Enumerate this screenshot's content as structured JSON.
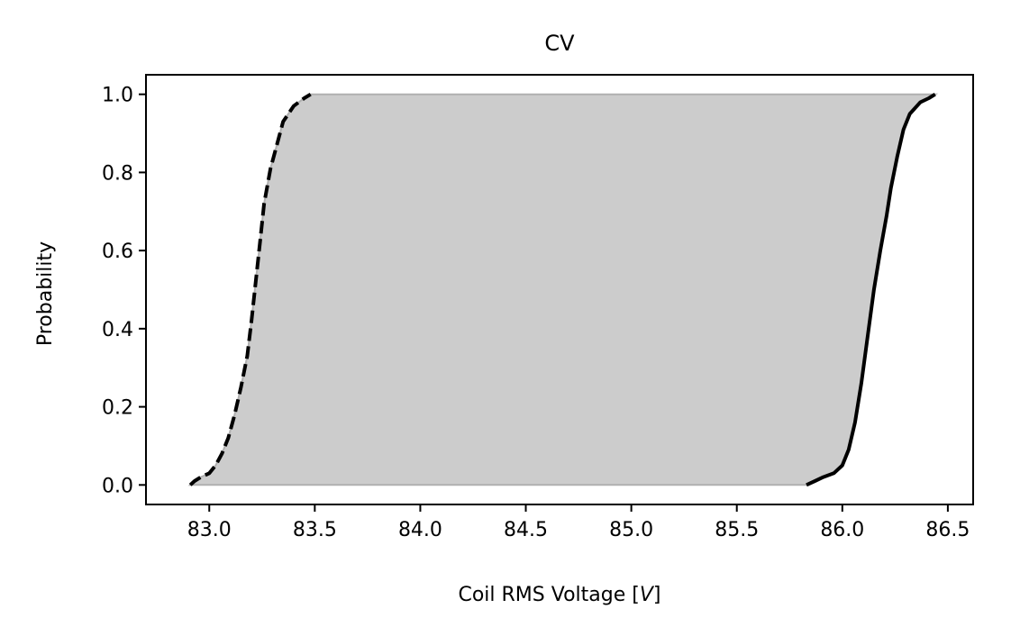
{
  "chart_data": {
    "type": "line",
    "title": "CV",
    "xlabel": "Coil RMS Voltage [V]",
    "xlabel_prefix": "Coil RMS Voltage [",
    "xlabel_unit": "V",
    "xlabel_suffix": "]",
    "ylabel": "Probability",
    "xlim": [
      82.7,
      86.62
    ],
    "ylim": [
      -0.05,
      1.05
    ],
    "x_ticks": [
      "83.0",
      "83.5",
      "84.0",
      "84.5",
      "85.0",
      "85.5",
      "86.0",
      "86.5"
    ],
    "y_ticks": [
      "0.0",
      "0.2",
      "0.4",
      "0.6",
      "0.8",
      "1.0"
    ],
    "grid": false,
    "fill_color": "#cccccc",
    "line_color": "#000000",
    "series": [
      {
        "style": "dashed",
        "points": [
          [
            82.91,
            0.0
          ],
          [
            82.93,
            0.01
          ],
          [
            82.96,
            0.02
          ],
          [
            83.0,
            0.03
          ],
          [
            83.03,
            0.05
          ],
          [
            83.06,
            0.08
          ],
          [
            83.09,
            0.12
          ],
          [
            83.12,
            0.18
          ],
          [
            83.15,
            0.25
          ],
          [
            83.18,
            0.33
          ],
          [
            83.2,
            0.42
          ],
          [
            83.22,
            0.52
          ],
          [
            83.24,
            0.62
          ],
          [
            83.26,
            0.72
          ],
          [
            83.29,
            0.81
          ],
          [
            83.32,
            0.87
          ],
          [
            83.35,
            0.93
          ],
          [
            83.4,
            0.97
          ],
          [
            83.45,
            0.99
          ],
          [
            83.48,
            1.0
          ]
        ]
      },
      {
        "style": "solid",
        "points": [
          [
            85.83,
            0.0
          ],
          [
            85.87,
            0.01
          ],
          [
            85.91,
            0.02
          ],
          [
            85.96,
            0.03
          ],
          [
            86.0,
            0.05
          ],
          [
            86.03,
            0.09
          ],
          [
            86.06,
            0.16
          ],
          [
            86.09,
            0.26
          ],
          [
            86.12,
            0.38
          ],
          [
            86.15,
            0.5
          ],
          [
            86.18,
            0.6
          ],
          [
            86.21,
            0.69
          ],
          [
            86.23,
            0.76
          ],
          [
            86.26,
            0.84
          ],
          [
            86.29,
            0.91
          ],
          [
            86.32,
            0.95
          ],
          [
            86.37,
            0.98
          ],
          [
            86.41,
            0.99
          ],
          [
            86.44,
            1.0
          ]
        ]
      }
    ]
  }
}
